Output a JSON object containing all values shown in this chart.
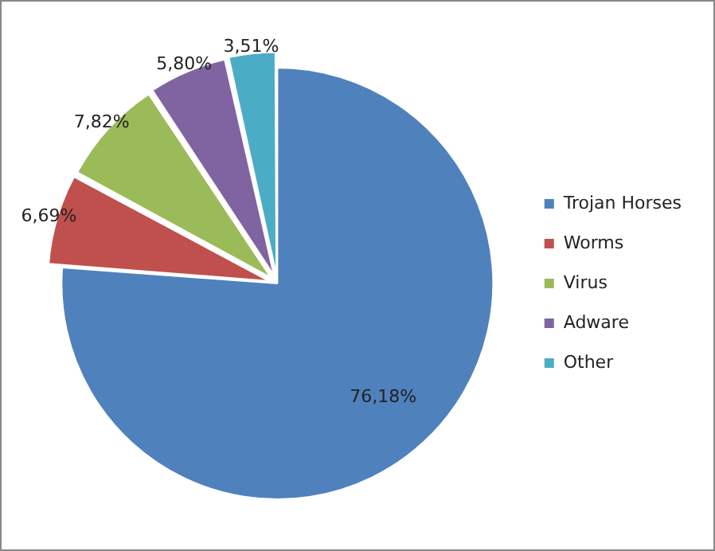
{
  "chart_data": {
    "type": "pie",
    "categories": [
      "Trojan Horses",
      "Worms",
      "Virus",
      "Adware",
      "Other"
    ],
    "values": [
      76.18,
      6.69,
      7.82,
      5.8,
      3.51
    ],
    "colors": [
      "#4f81bd",
      "#c0504d",
      "#9bbb59",
      "#8064a2",
      "#4bacc6"
    ],
    "value_labels": [
      "76,18%",
      "6,69%",
      "7,82%",
      "5,80%",
      "3,51%"
    ],
    "legend": "right"
  }
}
